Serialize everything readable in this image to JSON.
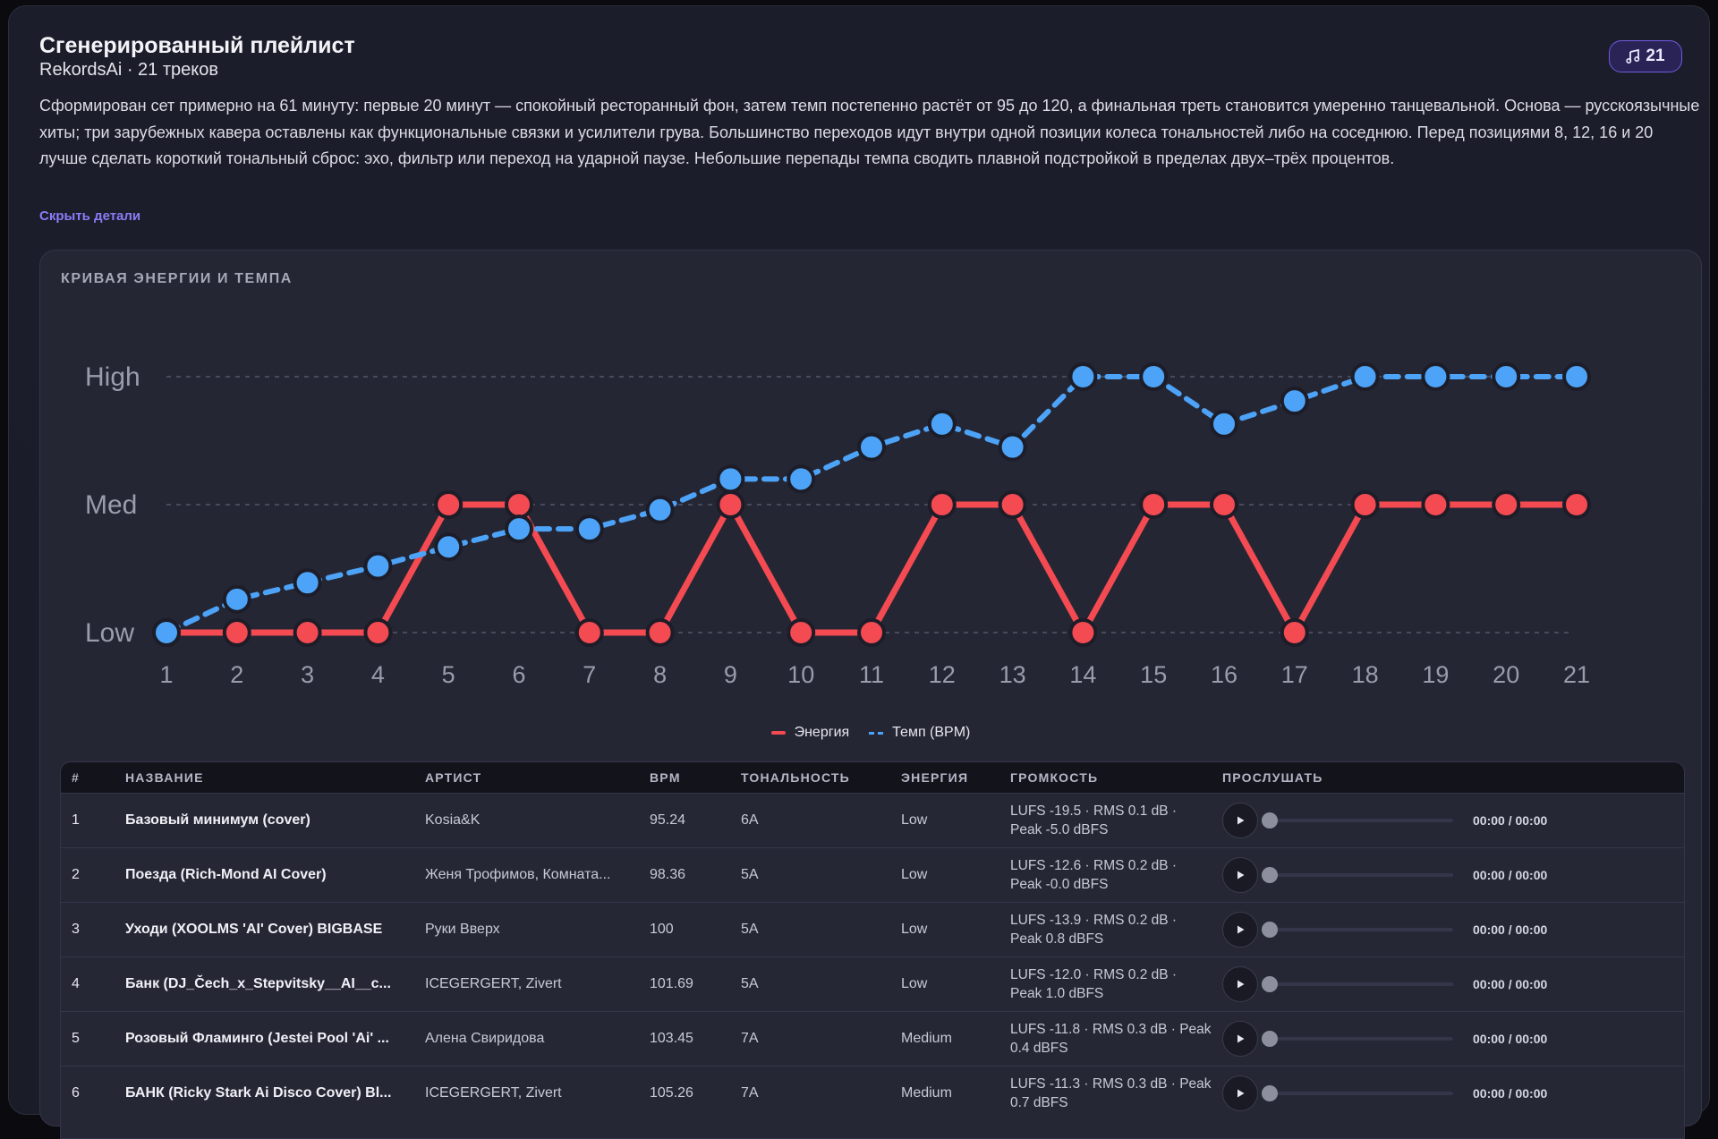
{
  "header": {
    "title": "Сгенерированный плейлист",
    "subtitle": "RekordsAi · 21 треков",
    "count_badge": "21",
    "description": "Сформирован сет примерно на 61 минуту: первые 20 минут — спокойный ресторанный фон, затем темп постепенно растёт от 95 до 120, а финальная треть становится умеренно танцевальной. Основа — русскоязычные хиты; три зарубежных кавера оставлены как функциональные связки и усилители грува. Большинство переходов идут внутри одной позиции колеса тональностей либо на соседнюю. Перед позициями 8, 12, 16 и 20 лучше сделать короткий тональный сброс: эхо, фильтр или переход на ударной паузе. Небольшие перепады темпа сводить плавной подстройкой в пределах двух–трёх процентов.",
    "hide_details_label": "Скрыть детали"
  },
  "chart_section": {
    "heading": "КРИВАЯ ЭНЕРГИИ И ТЕМПА"
  },
  "chart_data": {
    "type": "line",
    "x": [
      "1",
      "2",
      "3",
      "4",
      "5",
      "6",
      "7",
      "8",
      "9",
      "10",
      "11",
      "12",
      "13",
      "14",
      "15",
      "16",
      "17",
      "18",
      "19",
      "20",
      "21"
    ],
    "y_tick_labels": [
      "Low",
      "Med",
      "High"
    ],
    "ylim": [
      0,
      2
    ],
    "grid": true,
    "legend_position": "bottom-center",
    "series": [
      {
        "name": "Энергия",
        "color": "#f44a52",
        "style": "solid",
        "values": [
          0,
          0,
          0,
          0,
          1,
          1,
          0,
          0,
          1,
          0,
          0,
          1,
          1,
          0,
          1,
          1,
          0,
          1,
          1,
          1,
          1
        ]
      },
      {
        "name": "Темп (BPM)",
        "color": "#4da3f7",
        "style": "dashed",
        "values": [
          0,
          0.26,
          0.39,
          0.52,
          0.67,
          0.81,
          0.81,
          0.96,
          1.2,
          1.2,
          1.45,
          1.63,
          1.45,
          2,
          2,
          1.63,
          1.81,
          2,
          2,
          2,
          2
        ]
      }
    ]
  },
  "table": {
    "headers": [
      "#",
      "НАЗВАНИЕ",
      "АРТИСТ",
      "BPM",
      "ТОНАЛЬНОСТЬ",
      "ЭНЕРГИЯ",
      "ГРОМКОСТЬ",
      "ПРОСЛУШАТЬ"
    ],
    "rows": [
      {
        "num": "1",
        "title": "Базовый минимум (cover)",
        "artist": "Kosia&K",
        "bpm": "95.24",
        "key": "6A",
        "energy": "Low",
        "loudness": "LUFS -19.5 · RMS 0.1 dB · Peak -5.0 dBFS",
        "time": "00:00 / 00:00",
        "progress": 0
      },
      {
        "num": "2",
        "title": "Поезда (Rich-Mond AI Cover)",
        "artist": "Женя Трофимов, Комната...",
        "bpm": "98.36",
        "key": "5A",
        "energy": "Low",
        "loudness": "LUFS -12.6 · RMS 0.2 dB · Peak -0.0 dBFS",
        "time": "00:00 / 00:00",
        "progress": 0
      },
      {
        "num": "3",
        "title": "Уходи (XOOLMS 'AI' Cover) BIGBASE",
        "artist": "Руки Вверх",
        "bpm": "100",
        "key": "5A",
        "energy": "Low",
        "loudness": "LUFS -13.9 · RMS 0.2 dB · Peak 0.8 dBFS",
        "time": "00:00 / 00:00",
        "progress": 0
      },
      {
        "num": "4",
        "title": "Банк (DJ_Čech_x_Stepvitsky__AI__c...",
        "artist": "ICEGERGERT, Zivert",
        "bpm": "101.69",
        "key": "5A",
        "energy": "Low",
        "loudness": "LUFS -12.0 · RMS 0.2 dB · Peak 1.0 dBFS",
        "time": "00:00 / 00:00",
        "progress": 0
      },
      {
        "num": "5",
        "title": "Розовый Фламинго (Jestei Pool 'Ai' ...",
        "artist": "Алена Свиридова",
        "bpm": "103.45",
        "key": "7A",
        "energy": "Medium",
        "loudness": "LUFS -11.8 · RMS 0.3 dB · Peak 0.4 dBFS",
        "time": "00:00 / 00:00",
        "progress": 0
      },
      {
        "num": "6",
        "title": "БАНК (Ricky Stark Ai Disco Cover) Bl...",
        "artist": "ICEGERGERT, Zivert",
        "bpm": "105.26",
        "key": "7A",
        "energy": "Medium",
        "loudness": "LUFS -11.3 · RMS 0.3 dB · Peak 0.7 dBFS",
        "time": "00:00 / 00:00",
        "progress": 0
      }
    ]
  }
}
